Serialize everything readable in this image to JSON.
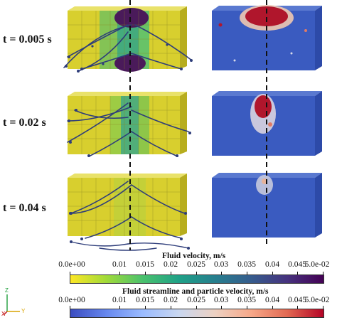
{
  "row_labels": [
    "t = 0.005 s",
    "t = 0.02 s",
    "t = 0.04 s"
  ],
  "colorbar_fluid": {
    "title": "Fluid velocity, m/s",
    "ticks": [
      "0.0e+00",
      "0.01",
      "0.015",
      "0.02",
      "0.025",
      "0.03",
      "0.035",
      "0.04",
      "0.045",
      "5.0e-02"
    ],
    "colormap": "viridis"
  },
  "colorbar_particle": {
    "title": "Fluid streamline and particle velocity, m/s",
    "ticks": [
      "0.0e+00",
      "0.01",
      "0.015",
      "0.02",
      "0.025",
      "0.03",
      "0.035",
      "0.04",
      "0.045",
      "5.0e-02"
    ],
    "colormap": "cool-warm"
  },
  "orientation_axes": {
    "z": "Z",
    "y": "Y",
    "x": "X"
  },
  "colors": {
    "box_yellow": "#d8cf2e",
    "streamline": "#2e3d7a",
    "particle_blue": "#3a5bc0",
    "particle_red": "#b0162c",
    "center_line": "#111111"
  }
}
